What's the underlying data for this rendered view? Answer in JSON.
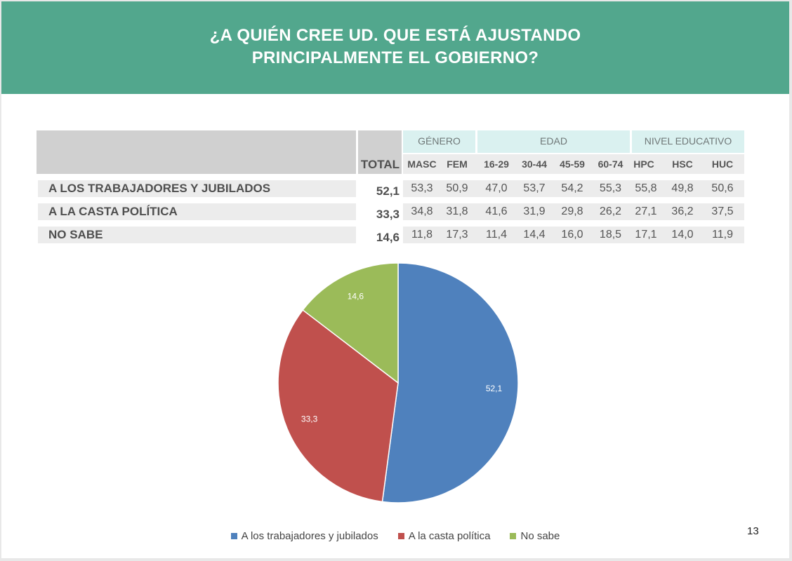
{
  "title_line1": "¿A QUIÉN CREE UD. QUE ESTÁ AJUSTANDO",
  "title_line2": "PRINCIPALMENTE EL GOBIERNO?",
  "page_number": "13",
  "table": {
    "total_header": "TOTAL",
    "groups": [
      "GÉNERO",
      "EDAD",
      "NIVEL EDUCATIVO"
    ],
    "columns": [
      "MASC",
      "FEM",
      "16-29",
      "30-44",
      "45-59",
      "60-74",
      "HPC",
      "HSC",
      "HUC"
    ],
    "rows": [
      {
        "label": "A LOS TRABAJADORES Y JUBILADOS",
        "total": "52,1",
        "values": [
          "53,3",
          "50,9",
          "47,0",
          "53,7",
          "54,2",
          "55,3",
          "55,8",
          "49,8",
          "50,6"
        ]
      },
      {
        "label": "A LA CASTA POLÍTICA",
        "total": "33,3",
        "values": [
          "34,8",
          "31,8",
          "41,6",
          "31,9",
          "29,8",
          "26,2",
          "27,1",
          "36,2",
          "37,5"
        ]
      },
      {
        "label": "NO SABE",
        "total": "14,6",
        "values": [
          "11,8",
          "17,3",
          "11,4",
          "14,4",
          "16,0",
          "18,5",
          "17,1",
          "14,0",
          "11,9"
        ]
      }
    ]
  },
  "chart_data": {
    "type": "pie",
    "title": "¿A QUIÉN CREE UD. QUE ESTÁ AJUSTANDO PRINCIPALMENTE EL GOBIERNO?",
    "categories": [
      "A los trabajadores y jubilados",
      "A la casta política",
      "No sabe"
    ],
    "values": [
      52.1,
      33.3,
      14.6
    ],
    "data_labels": [
      "52,1",
      "33,3",
      "14,6"
    ],
    "colors": [
      "#4f81bd",
      "#c0504d",
      "#9bbb59"
    ],
    "legend_position": "bottom"
  }
}
